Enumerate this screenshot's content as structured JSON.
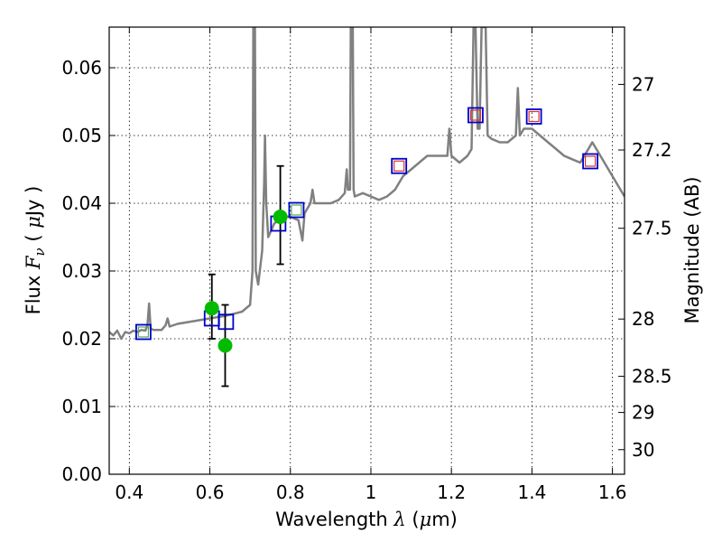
{
  "chart_data": {
    "type": "scatter",
    "title": "",
    "xlabel": {
      "prefix": "Wavelength  ",
      "symbol": "λ",
      "suffix": " (",
      "unit_symbol": "μ",
      "unit": "m)"
    },
    "ylabel": {
      "prefix": "Flux  ",
      "symbol": "F",
      "subscript": "ν",
      "paren_open": "  (  ",
      "unit_symbol": "μ",
      "unit": "Jy  )"
    },
    "y2label": "Magnitude (AB)",
    "xlim": [
      0.35,
      1.63
    ],
    "ylim": [
      0.0,
      0.066
    ],
    "grid": true,
    "x_ticks": [
      {
        "value": 0.4,
        "label": "0.4"
      },
      {
        "value": 0.6,
        "label": "0.6"
      },
      {
        "value": 0.8,
        "label": "0.8"
      },
      {
        "value": 1.0,
        "label": "1"
      },
      {
        "value": 1.2,
        "label": "1.2"
      },
      {
        "value": 1.4,
        "label": "1.4"
      },
      {
        "value": 1.6,
        "label": "1.6"
      }
    ],
    "y_ticks": [
      {
        "value": 0.0,
        "label": "0.00"
      },
      {
        "value": 0.01,
        "label": "0.01"
      },
      {
        "value": 0.02,
        "label": "0.02"
      },
      {
        "value": 0.03,
        "label": "0.03"
      },
      {
        "value": 0.04,
        "label": "0.04"
      },
      {
        "value": 0.05,
        "label": "0.05"
      },
      {
        "value": 0.06,
        "label": "0.06"
      }
    ],
    "y2_ticks": [
      {
        "mag": 27,
        "label": "27"
      },
      {
        "mag": 27.2,
        "label": "27.2"
      },
      {
        "mag": 27.5,
        "label": "27.5"
      },
      {
        "mag": 28,
        "label": "28"
      },
      {
        "mag": 28.5,
        "label": "28.5"
      },
      {
        "mag": 29,
        "label": "29"
      },
      {
        "mag": 30,
        "label": "30"
      }
    ],
    "colors": {
      "sed": "#808080",
      "model": "#0000cc",
      "model_inner_green": "#55aa55",
      "model_inner_red": "#dd3333",
      "observed": "#00bb00",
      "errorbar": "#000000"
    },
    "sed_model": {
      "color": "#808080",
      "points": [
        [
          0.35,
          0.021
        ],
        [
          0.36,
          0.0205
        ],
        [
          0.37,
          0.0212
        ],
        [
          0.38,
          0.02
        ],
        [
          0.39,
          0.021
        ],
        [
          0.4,
          0.0208
        ],
        [
          0.41,
          0.0212
        ],
        [
          0.42,
          0.021
        ],
        [
          0.43,
          0.0213
        ],
        [
          0.44,
          0.0212
        ],
        [
          0.445,
          0.022
        ],
        [
          0.449,
          0.0252
        ],
        [
          0.453,
          0.0215
        ],
        [
          0.46,
          0.0213
        ],
        [
          0.48,
          0.0213
        ],
        [
          0.49,
          0.022
        ],
        [
          0.495,
          0.023
        ],
        [
          0.5,
          0.0218
        ],
        [
          0.52,
          0.0222
        ],
        [
          0.54,
          0.0224
        ],
        [
          0.56,
          0.0226
        ],
        [
          0.58,
          0.0228
        ],
        [
          0.6,
          0.023
        ],
        [
          0.62,
          0.0232
        ],
        [
          0.64,
          0.0234
        ],
        [
          0.66,
          0.0237
        ],
        [
          0.68,
          0.024
        ],
        [
          0.7,
          0.025
        ],
        [
          0.706,
          0.03
        ],
        [
          0.708,
          0.066
        ],
        [
          0.712,
          0.066
        ],
        [
          0.714,
          0.03
        ],
        [
          0.72,
          0.028
        ],
        [
          0.73,
          0.033
        ],
        [
          0.735,
          0.043
        ],
        [
          0.737,
          0.05
        ],
        [
          0.74,
          0.04
        ],
        [
          0.745,
          0.035
        ],
        [
          0.76,
          0.037
        ],
        [
          0.78,
          0.038
        ],
        [
          0.8,
          0.038
        ],
        [
          0.82,
          0.0375
        ],
        [
          0.83,
          0.0345
        ],
        [
          0.835,
          0.0385
        ],
        [
          0.84,
          0.039
        ],
        [
          0.85,
          0.04
        ],
        [
          0.855,
          0.042
        ],
        [
          0.86,
          0.04
        ],
        [
          0.88,
          0.04
        ],
        [
          0.9,
          0.04
        ],
        [
          0.92,
          0.0405
        ],
        [
          0.935,
          0.0415
        ],
        [
          0.94,
          0.045
        ],
        [
          0.943,
          0.042
        ],
        [
          0.948,
          0.042
        ],
        [
          0.95,
          0.066
        ],
        [
          0.955,
          0.066
        ],
        [
          0.957,
          0.042
        ],
        [
          0.96,
          0.041
        ],
        [
          0.98,
          0.0415
        ],
        [
          1.0,
          0.041
        ],
        [
          1.02,
          0.0405
        ],
        [
          1.04,
          0.041
        ],
        [
          1.06,
          0.042
        ],
        [
          1.08,
          0.044
        ],
        [
          1.1,
          0.045
        ],
        [
          1.12,
          0.046
        ],
        [
          1.14,
          0.047
        ],
        [
          1.16,
          0.047
        ],
        [
          1.18,
          0.047
        ],
        [
          1.19,
          0.047
        ],
        [
          1.195,
          0.051
        ],
        [
          1.2,
          0.047
        ],
        [
          1.22,
          0.046
        ],
        [
          1.24,
          0.047
        ],
        [
          1.25,
          0.048
        ],
        [
          1.255,
          0.066
        ],
        [
          1.26,
          0.066
        ],
        [
          1.265,
          0.051
        ],
        [
          1.27,
          0.051
        ],
        [
          1.275,
          0.066
        ],
        [
          1.285,
          0.066
        ],
        [
          1.29,
          0.05
        ],
        [
          1.3,
          0.0495
        ],
        [
          1.32,
          0.049
        ],
        [
          1.34,
          0.049
        ],
        [
          1.36,
          0.05
        ],
        [
          1.365,
          0.057
        ],
        [
          1.37,
          0.05
        ],
        [
          1.38,
          0.051
        ],
        [
          1.4,
          0.051
        ],
        [
          1.42,
          0.05
        ],
        [
          1.44,
          0.049
        ],
        [
          1.46,
          0.048
        ],
        [
          1.48,
          0.047
        ],
        [
          1.5,
          0.0465
        ],
        [
          1.52,
          0.046
        ],
        [
          1.54,
          0.048
        ],
        [
          1.55,
          0.049
        ],
        [
          1.56,
          0.048
        ],
        [
          1.58,
          0.046
        ],
        [
          1.6,
          0.044
        ],
        [
          1.62,
          0.042
        ],
        [
          1.63,
          0.041
        ]
      ]
    },
    "model_photometry": [
      {
        "x": 0.435,
        "y": 0.021,
        "inner": "green"
      },
      {
        "x": 0.605,
        "y": 0.023,
        "inner": "none"
      },
      {
        "x": 0.64,
        "y": 0.0225,
        "inner": "none"
      },
      {
        "x": 0.77,
        "y": 0.037,
        "inner": "none"
      },
      {
        "x": 0.815,
        "y": 0.039,
        "inner": "green"
      },
      {
        "x": 1.07,
        "y": 0.0455,
        "inner": "red"
      },
      {
        "x": 1.26,
        "y": 0.053,
        "inner": "red"
      },
      {
        "x": 1.405,
        "y": 0.0528,
        "inner": "red"
      },
      {
        "x": 1.545,
        "y": 0.0462,
        "inner": "red"
      }
    ],
    "observed": [
      {
        "x": 0.605,
        "y": 0.0245,
        "err_low": 0.02,
        "err_high": 0.0295
      },
      {
        "x": 0.638,
        "y": 0.019,
        "err_low": 0.013,
        "err_high": 0.025
      },
      {
        "x": 0.775,
        "y": 0.038,
        "err_low": 0.031,
        "err_high": 0.0455
      }
    ]
  }
}
